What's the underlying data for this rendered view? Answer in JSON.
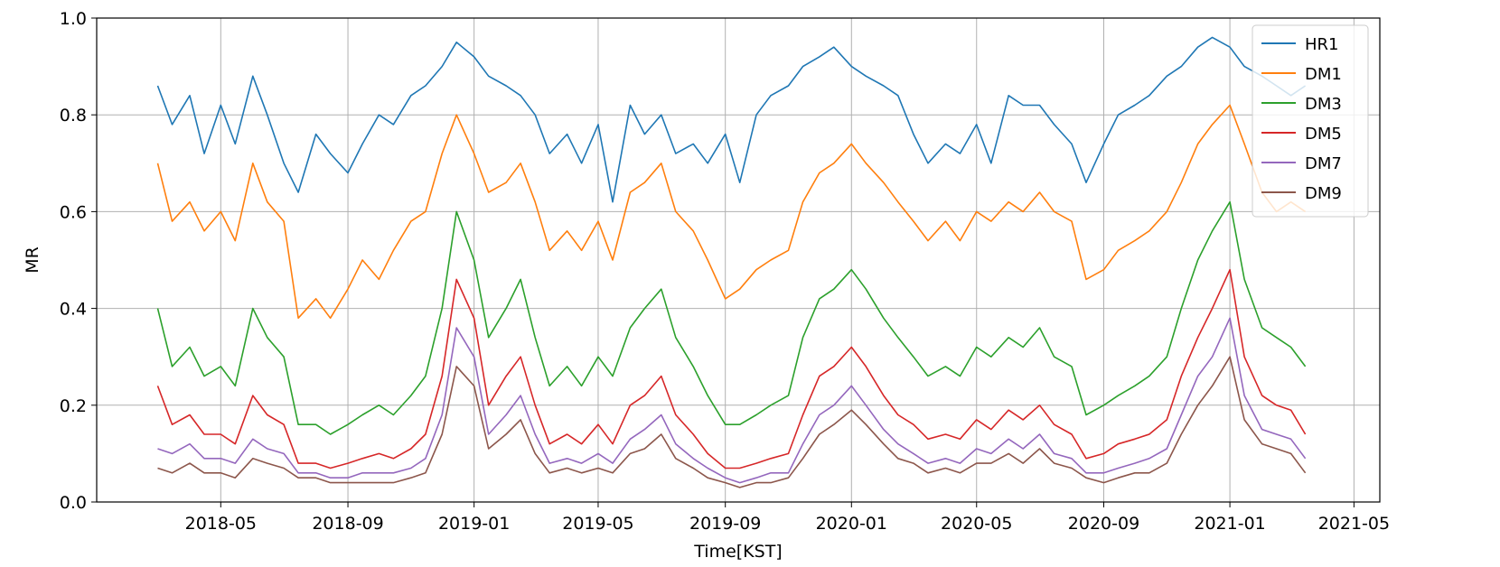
{
  "chart_data": {
    "type": "line",
    "title": "",
    "xlabel": "Time[KST]",
    "ylabel": "MR",
    "xlim": [
      "2018-01-01",
      "2021-05-26"
    ],
    "ylim": [
      0.0,
      1.0
    ],
    "grid": true,
    "legend_position": "top-right",
    "x_ticks": [
      "2018-05",
      "2018-09",
      "2019-01",
      "2019-05",
      "2019-09",
      "2020-01",
      "2020-05",
      "2020-09",
      "2021-01",
      "2021-05"
    ],
    "y_ticks": [
      "0.0",
      "0.2",
      "0.4",
      "0.6",
      "0.8",
      "1.0"
    ],
    "x": [
      "2018-03-01",
      "2018-03-15",
      "2018-04-01",
      "2018-04-15",
      "2018-05-01",
      "2018-05-15",
      "2018-06-01",
      "2018-06-15",
      "2018-07-01",
      "2018-07-15",
      "2018-08-01",
      "2018-08-15",
      "2018-09-01",
      "2018-09-15",
      "2018-10-01",
      "2018-10-15",
      "2018-11-01",
      "2018-11-15",
      "2018-12-01",
      "2018-12-15",
      "2019-01-01",
      "2019-01-15",
      "2019-02-01",
      "2019-02-15",
      "2019-03-01",
      "2019-03-15",
      "2019-04-01",
      "2019-04-15",
      "2019-05-01",
      "2019-05-15",
      "2019-06-01",
      "2019-06-15",
      "2019-07-01",
      "2019-07-15",
      "2019-08-01",
      "2019-08-15",
      "2019-09-01",
      "2019-09-15",
      "2019-10-01",
      "2019-10-15",
      "2019-11-01",
      "2019-11-15",
      "2019-12-01",
      "2019-12-15",
      "2020-01-01",
      "2020-01-15",
      "2020-02-01",
      "2020-02-15",
      "2020-03-01",
      "2020-03-15",
      "2020-04-01",
      "2020-04-15",
      "2020-05-01",
      "2020-05-15",
      "2020-06-01",
      "2020-06-15",
      "2020-07-01",
      "2020-07-15",
      "2020-08-01",
      "2020-08-15",
      "2020-09-01",
      "2020-09-15",
      "2020-10-01",
      "2020-10-15",
      "2020-11-01",
      "2020-11-15",
      "2020-12-01",
      "2020-12-15",
      "2021-01-01",
      "2021-01-15",
      "2021-02-01",
      "2021-02-15",
      "2021-03-01",
      "2021-03-15"
    ],
    "series": [
      {
        "name": "HR1",
        "color": "#1f77b4",
        "values": [
          0.86,
          0.78,
          0.84,
          0.72,
          0.82,
          0.74,
          0.88,
          0.8,
          0.7,
          0.64,
          0.76,
          0.72,
          0.68,
          0.74,
          0.8,
          0.78,
          0.84,
          0.86,
          0.9,
          0.95,
          0.92,
          0.88,
          0.86,
          0.84,
          0.8,
          0.72,
          0.76,
          0.7,
          0.78,
          0.62,
          0.82,
          0.76,
          0.8,
          0.72,
          0.74,
          0.7,
          0.76,
          0.66,
          0.8,
          0.84,
          0.86,
          0.9,
          0.92,
          0.94,
          0.9,
          0.88,
          0.86,
          0.84,
          0.76,
          0.7,
          0.74,
          0.72,
          0.78,
          0.7,
          0.84,
          0.82,
          0.82,
          0.78,
          0.74,
          0.66,
          0.74,
          0.8,
          0.82,
          0.84,
          0.88,
          0.9,
          0.94,
          0.96,
          0.94,
          0.9,
          0.88,
          0.86,
          0.84,
          0.86
        ]
      },
      {
        "name": "DM1",
        "color": "#ff7f0e",
        "values": [
          0.7,
          0.58,
          0.62,
          0.56,
          0.6,
          0.54,
          0.7,
          0.62,
          0.58,
          0.38,
          0.42,
          0.38,
          0.44,
          0.5,
          0.46,
          0.52,
          0.58,
          0.6,
          0.72,
          0.8,
          0.72,
          0.64,
          0.66,
          0.7,
          0.62,
          0.52,
          0.56,
          0.52,
          0.58,
          0.5,
          0.64,
          0.66,
          0.7,
          0.6,
          0.56,
          0.5,
          0.42,
          0.44,
          0.48,
          0.5,
          0.52,
          0.62,
          0.68,
          0.7,
          0.74,
          0.7,
          0.66,
          0.62,
          0.58,
          0.54,
          0.58,
          0.54,
          0.6,
          0.58,
          0.62,
          0.6,
          0.64,
          0.6,
          0.58,
          0.46,
          0.48,
          0.52,
          0.54,
          0.56,
          0.6,
          0.66,
          0.74,
          0.78,
          0.82,
          0.74,
          0.64,
          0.6,
          0.62,
          0.6
        ]
      },
      {
        "name": "DM3",
        "color": "#2ca02c",
        "values": [
          0.4,
          0.28,
          0.32,
          0.26,
          0.28,
          0.24,
          0.4,
          0.34,
          0.3,
          0.16,
          0.16,
          0.14,
          0.16,
          0.18,
          0.2,
          0.18,
          0.22,
          0.26,
          0.4,
          0.6,
          0.5,
          0.34,
          0.4,
          0.46,
          0.34,
          0.24,
          0.28,
          0.24,
          0.3,
          0.26,
          0.36,
          0.4,
          0.44,
          0.34,
          0.28,
          0.22,
          0.16,
          0.16,
          0.18,
          0.2,
          0.22,
          0.34,
          0.42,
          0.44,
          0.48,
          0.44,
          0.38,
          0.34,
          0.3,
          0.26,
          0.28,
          0.26,
          0.32,
          0.3,
          0.34,
          0.32,
          0.36,
          0.3,
          0.28,
          0.18,
          0.2,
          0.22,
          0.24,
          0.26,
          0.3,
          0.4,
          0.5,
          0.56,
          0.62,
          0.46,
          0.36,
          0.34,
          0.32,
          0.28
        ]
      },
      {
        "name": "DM5",
        "color": "#d62728",
        "values": [
          0.24,
          0.16,
          0.18,
          0.14,
          0.14,
          0.12,
          0.22,
          0.18,
          0.16,
          0.08,
          0.08,
          0.07,
          0.08,
          0.09,
          0.1,
          0.09,
          0.11,
          0.14,
          0.26,
          0.46,
          0.38,
          0.2,
          0.26,
          0.3,
          0.2,
          0.12,
          0.14,
          0.12,
          0.16,
          0.12,
          0.2,
          0.22,
          0.26,
          0.18,
          0.14,
          0.1,
          0.07,
          0.07,
          0.08,
          0.09,
          0.1,
          0.18,
          0.26,
          0.28,
          0.32,
          0.28,
          0.22,
          0.18,
          0.16,
          0.13,
          0.14,
          0.13,
          0.17,
          0.15,
          0.19,
          0.17,
          0.2,
          0.16,
          0.14,
          0.09,
          0.1,
          0.12,
          0.13,
          0.14,
          0.17,
          0.26,
          0.34,
          0.4,
          0.48,
          0.3,
          0.22,
          0.2,
          0.19,
          0.14
        ]
      },
      {
        "name": "DM7",
        "color": "#9467bd",
        "values": [
          0.11,
          0.1,
          0.12,
          0.09,
          0.09,
          0.08,
          0.13,
          0.11,
          0.1,
          0.06,
          0.06,
          0.05,
          0.05,
          0.06,
          0.06,
          0.06,
          0.07,
          0.09,
          0.18,
          0.36,
          0.3,
          0.14,
          0.18,
          0.22,
          0.14,
          0.08,
          0.09,
          0.08,
          0.1,
          0.08,
          0.13,
          0.15,
          0.18,
          0.12,
          0.09,
          0.07,
          0.05,
          0.04,
          0.05,
          0.06,
          0.06,
          0.12,
          0.18,
          0.2,
          0.24,
          0.2,
          0.15,
          0.12,
          0.1,
          0.08,
          0.09,
          0.08,
          0.11,
          0.1,
          0.13,
          0.11,
          0.14,
          0.1,
          0.09,
          0.06,
          0.06,
          0.07,
          0.08,
          0.09,
          0.11,
          0.18,
          0.26,
          0.3,
          0.38,
          0.22,
          0.15,
          0.14,
          0.13,
          0.09
        ]
      },
      {
        "name": "DM9",
        "color": "#8c564b",
        "values": [
          0.07,
          0.06,
          0.08,
          0.06,
          0.06,
          0.05,
          0.09,
          0.08,
          0.07,
          0.05,
          0.05,
          0.04,
          0.04,
          0.04,
          0.04,
          0.04,
          0.05,
          0.06,
          0.14,
          0.28,
          0.24,
          0.11,
          0.14,
          0.17,
          0.1,
          0.06,
          0.07,
          0.06,
          0.07,
          0.06,
          0.1,
          0.11,
          0.14,
          0.09,
          0.07,
          0.05,
          0.04,
          0.03,
          0.04,
          0.04,
          0.05,
          0.09,
          0.14,
          0.16,
          0.19,
          0.16,
          0.12,
          0.09,
          0.08,
          0.06,
          0.07,
          0.06,
          0.08,
          0.08,
          0.1,
          0.08,
          0.11,
          0.08,
          0.07,
          0.05,
          0.04,
          0.05,
          0.06,
          0.06,
          0.08,
          0.14,
          0.2,
          0.24,
          0.3,
          0.17,
          0.12,
          0.11,
          0.1,
          0.06
        ]
      }
    ]
  }
}
